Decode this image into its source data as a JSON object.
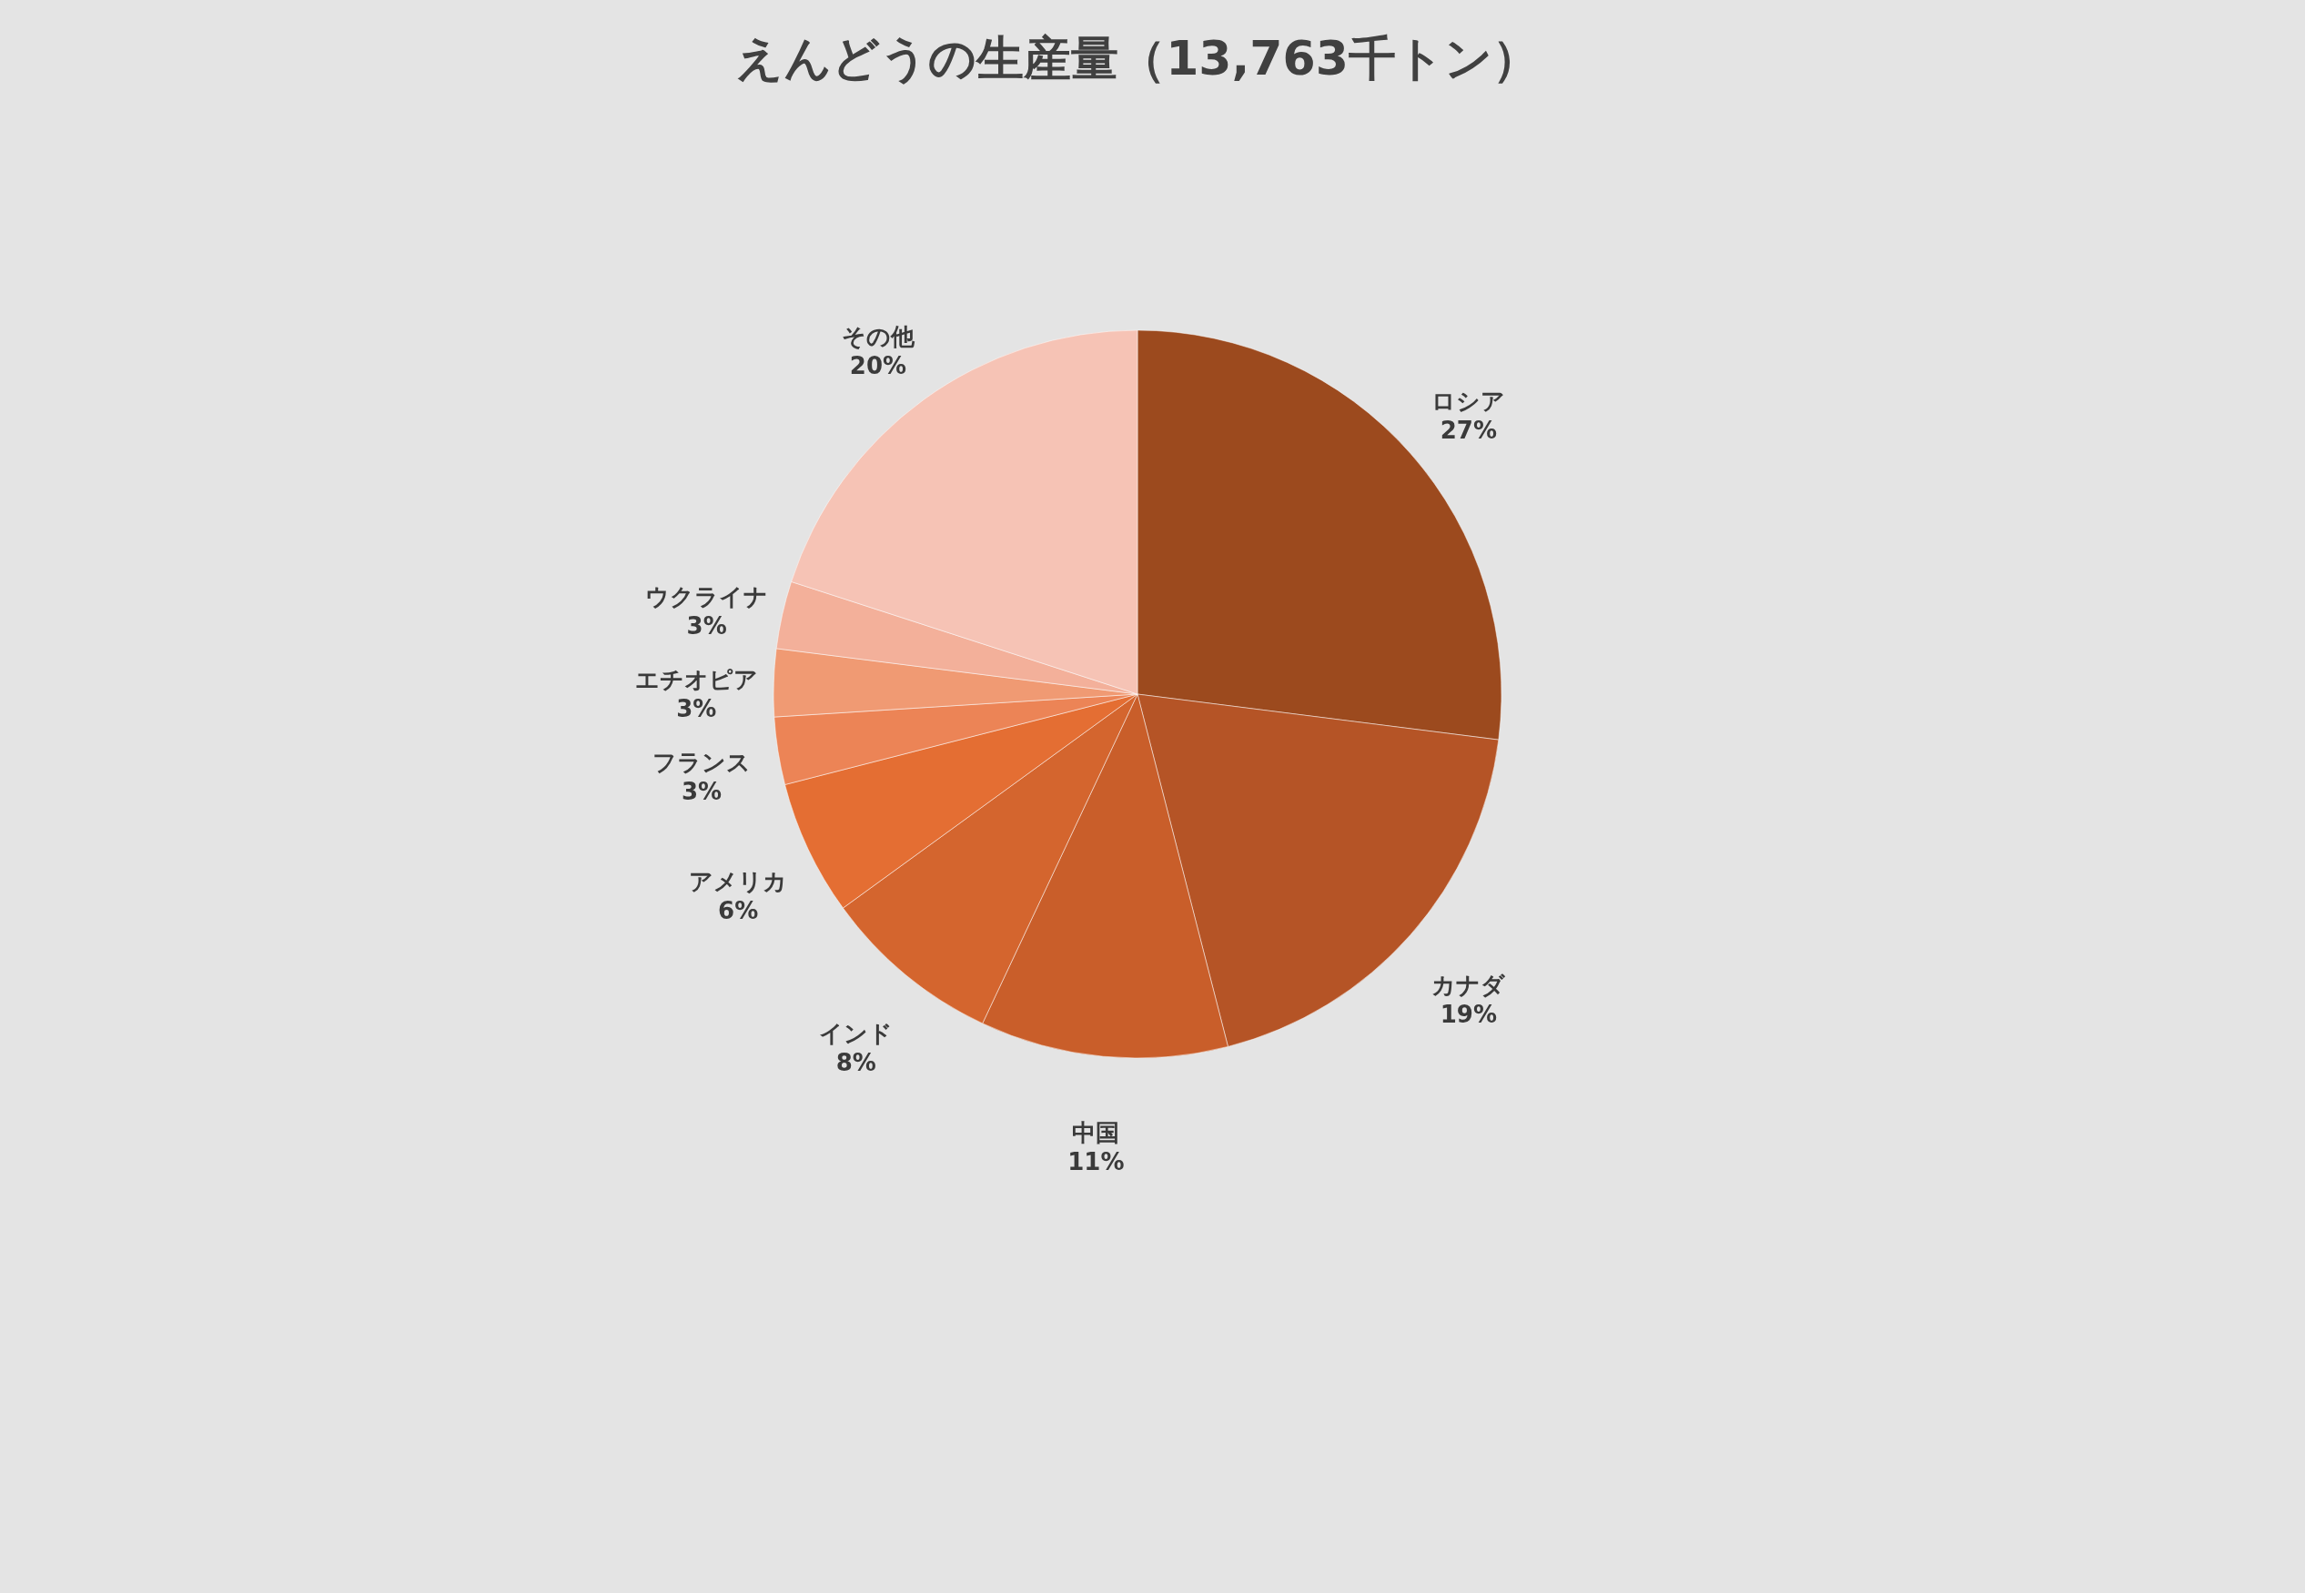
{
  "chart_data": {
    "type": "pie",
    "title": "えんどうの生産量（13,763千トン）",
    "categories": [
      "ロシア",
      "カナダ",
      "中国",
      "インド",
      "アメリカ",
      "フランス",
      "エチオピア",
      "ウクライナ",
      "その他"
    ],
    "values": [
      27,
      19,
      11,
      8,
      6,
      3,
      3,
      3,
      20
    ],
    "value_labels": [
      "27%",
      "19%",
      "11%",
      "8%",
      "6%",
      "3%",
      "3%",
      "3%",
      "20%"
    ],
    "colors": [
      "#9c4a1e",
      "#b55426",
      "#c95e2a",
      "#d4652e",
      "#e46e33",
      "#ec8456",
      "#f09a73",
      "#f3b09a",
      "#f6c3b5"
    ],
    "legend": false
  }
}
